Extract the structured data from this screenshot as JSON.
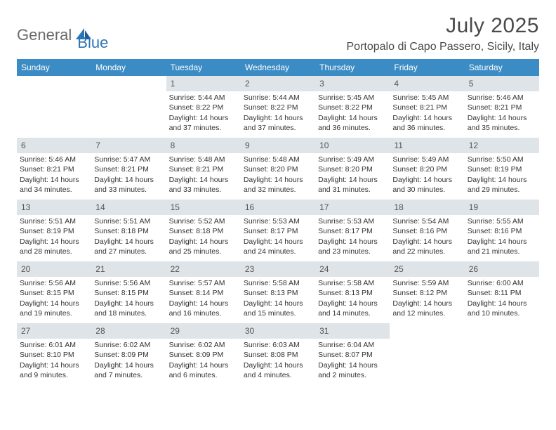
{
  "brand": {
    "general": "General",
    "blue": "Blue"
  },
  "title": "July 2025",
  "location": "Portopalo di Capo Passero, Sicily, Italy",
  "colors": {
    "header_bg": "#3b8bc4",
    "header_text": "#ffffff",
    "daynum_bg": "#dfe4e8",
    "daynum_text": "#555555",
    "body_text": "#333333",
    "page_bg": "#ffffff",
    "logo_gray": "#6b6b6b",
    "logo_blue": "#2e75b6"
  },
  "day_names": [
    "Sunday",
    "Monday",
    "Tuesday",
    "Wednesday",
    "Thursday",
    "Friday",
    "Saturday"
  ],
  "weeks": [
    [
      {
        "n": "",
        "sr": "",
        "ss": "",
        "dl": ""
      },
      {
        "n": "",
        "sr": "",
        "ss": "",
        "dl": ""
      },
      {
        "n": "1",
        "sr": "Sunrise: 5:44 AM",
        "ss": "Sunset: 8:22 PM",
        "dl": "Daylight: 14 hours and 37 minutes."
      },
      {
        "n": "2",
        "sr": "Sunrise: 5:44 AM",
        "ss": "Sunset: 8:22 PM",
        "dl": "Daylight: 14 hours and 37 minutes."
      },
      {
        "n": "3",
        "sr": "Sunrise: 5:45 AM",
        "ss": "Sunset: 8:22 PM",
        "dl": "Daylight: 14 hours and 36 minutes."
      },
      {
        "n": "4",
        "sr": "Sunrise: 5:45 AM",
        "ss": "Sunset: 8:21 PM",
        "dl": "Daylight: 14 hours and 36 minutes."
      },
      {
        "n": "5",
        "sr": "Sunrise: 5:46 AM",
        "ss": "Sunset: 8:21 PM",
        "dl": "Daylight: 14 hours and 35 minutes."
      }
    ],
    [
      {
        "n": "6",
        "sr": "Sunrise: 5:46 AM",
        "ss": "Sunset: 8:21 PM",
        "dl": "Daylight: 14 hours and 34 minutes."
      },
      {
        "n": "7",
        "sr": "Sunrise: 5:47 AM",
        "ss": "Sunset: 8:21 PM",
        "dl": "Daylight: 14 hours and 33 minutes."
      },
      {
        "n": "8",
        "sr": "Sunrise: 5:48 AM",
        "ss": "Sunset: 8:21 PM",
        "dl": "Daylight: 14 hours and 33 minutes."
      },
      {
        "n": "9",
        "sr": "Sunrise: 5:48 AM",
        "ss": "Sunset: 8:20 PM",
        "dl": "Daylight: 14 hours and 32 minutes."
      },
      {
        "n": "10",
        "sr": "Sunrise: 5:49 AM",
        "ss": "Sunset: 8:20 PM",
        "dl": "Daylight: 14 hours and 31 minutes."
      },
      {
        "n": "11",
        "sr": "Sunrise: 5:49 AM",
        "ss": "Sunset: 8:20 PM",
        "dl": "Daylight: 14 hours and 30 minutes."
      },
      {
        "n": "12",
        "sr": "Sunrise: 5:50 AM",
        "ss": "Sunset: 8:19 PM",
        "dl": "Daylight: 14 hours and 29 minutes."
      }
    ],
    [
      {
        "n": "13",
        "sr": "Sunrise: 5:51 AM",
        "ss": "Sunset: 8:19 PM",
        "dl": "Daylight: 14 hours and 28 minutes."
      },
      {
        "n": "14",
        "sr": "Sunrise: 5:51 AM",
        "ss": "Sunset: 8:18 PM",
        "dl": "Daylight: 14 hours and 27 minutes."
      },
      {
        "n": "15",
        "sr": "Sunrise: 5:52 AM",
        "ss": "Sunset: 8:18 PM",
        "dl": "Daylight: 14 hours and 25 minutes."
      },
      {
        "n": "16",
        "sr": "Sunrise: 5:53 AM",
        "ss": "Sunset: 8:17 PM",
        "dl": "Daylight: 14 hours and 24 minutes."
      },
      {
        "n": "17",
        "sr": "Sunrise: 5:53 AM",
        "ss": "Sunset: 8:17 PM",
        "dl": "Daylight: 14 hours and 23 minutes."
      },
      {
        "n": "18",
        "sr": "Sunrise: 5:54 AM",
        "ss": "Sunset: 8:16 PM",
        "dl": "Daylight: 14 hours and 22 minutes."
      },
      {
        "n": "19",
        "sr": "Sunrise: 5:55 AM",
        "ss": "Sunset: 8:16 PM",
        "dl": "Daylight: 14 hours and 21 minutes."
      }
    ],
    [
      {
        "n": "20",
        "sr": "Sunrise: 5:56 AM",
        "ss": "Sunset: 8:15 PM",
        "dl": "Daylight: 14 hours and 19 minutes."
      },
      {
        "n": "21",
        "sr": "Sunrise: 5:56 AM",
        "ss": "Sunset: 8:15 PM",
        "dl": "Daylight: 14 hours and 18 minutes."
      },
      {
        "n": "22",
        "sr": "Sunrise: 5:57 AM",
        "ss": "Sunset: 8:14 PM",
        "dl": "Daylight: 14 hours and 16 minutes."
      },
      {
        "n": "23",
        "sr": "Sunrise: 5:58 AM",
        "ss": "Sunset: 8:13 PM",
        "dl": "Daylight: 14 hours and 15 minutes."
      },
      {
        "n": "24",
        "sr": "Sunrise: 5:58 AM",
        "ss": "Sunset: 8:13 PM",
        "dl": "Daylight: 14 hours and 14 minutes."
      },
      {
        "n": "25",
        "sr": "Sunrise: 5:59 AM",
        "ss": "Sunset: 8:12 PM",
        "dl": "Daylight: 14 hours and 12 minutes."
      },
      {
        "n": "26",
        "sr": "Sunrise: 6:00 AM",
        "ss": "Sunset: 8:11 PM",
        "dl": "Daylight: 14 hours and 10 minutes."
      }
    ],
    [
      {
        "n": "27",
        "sr": "Sunrise: 6:01 AM",
        "ss": "Sunset: 8:10 PM",
        "dl": "Daylight: 14 hours and 9 minutes."
      },
      {
        "n": "28",
        "sr": "Sunrise: 6:02 AM",
        "ss": "Sunset: 8:09 PM",
        "dl": "Daylight: 14 hours and 7 minutes."
      },
      {
        "n": "29",
        "sr": "Sunrise: 6:02 AM",
        "ss": "Sunset: 8:09 PM",
        "dl": "Daylight: 14 hours and 6 minutes."
      },
      {
        "n": "30",
        "sr": "Sunrise: 6:03 AM",
        "ss": "Sunset: 8:08 PM",
        "dl": "Daylight: 14 hours and 4 minutes."
      },
      {
        "n": "31",
        "sr": "Sunrise: 6:04 AM",
        "ss": "Sunset: 8:07 PM",
        "dl": "Daylight: 14 hours and 2 minutes."
      },
      {
        "n": "",
        "sr": "",
        "ss": "",
        "dl": ""
      },
      {
        "n": "",
        "sr": "",
        "ss": "",
        "dl": ""
      }
    ]
  ]
}
